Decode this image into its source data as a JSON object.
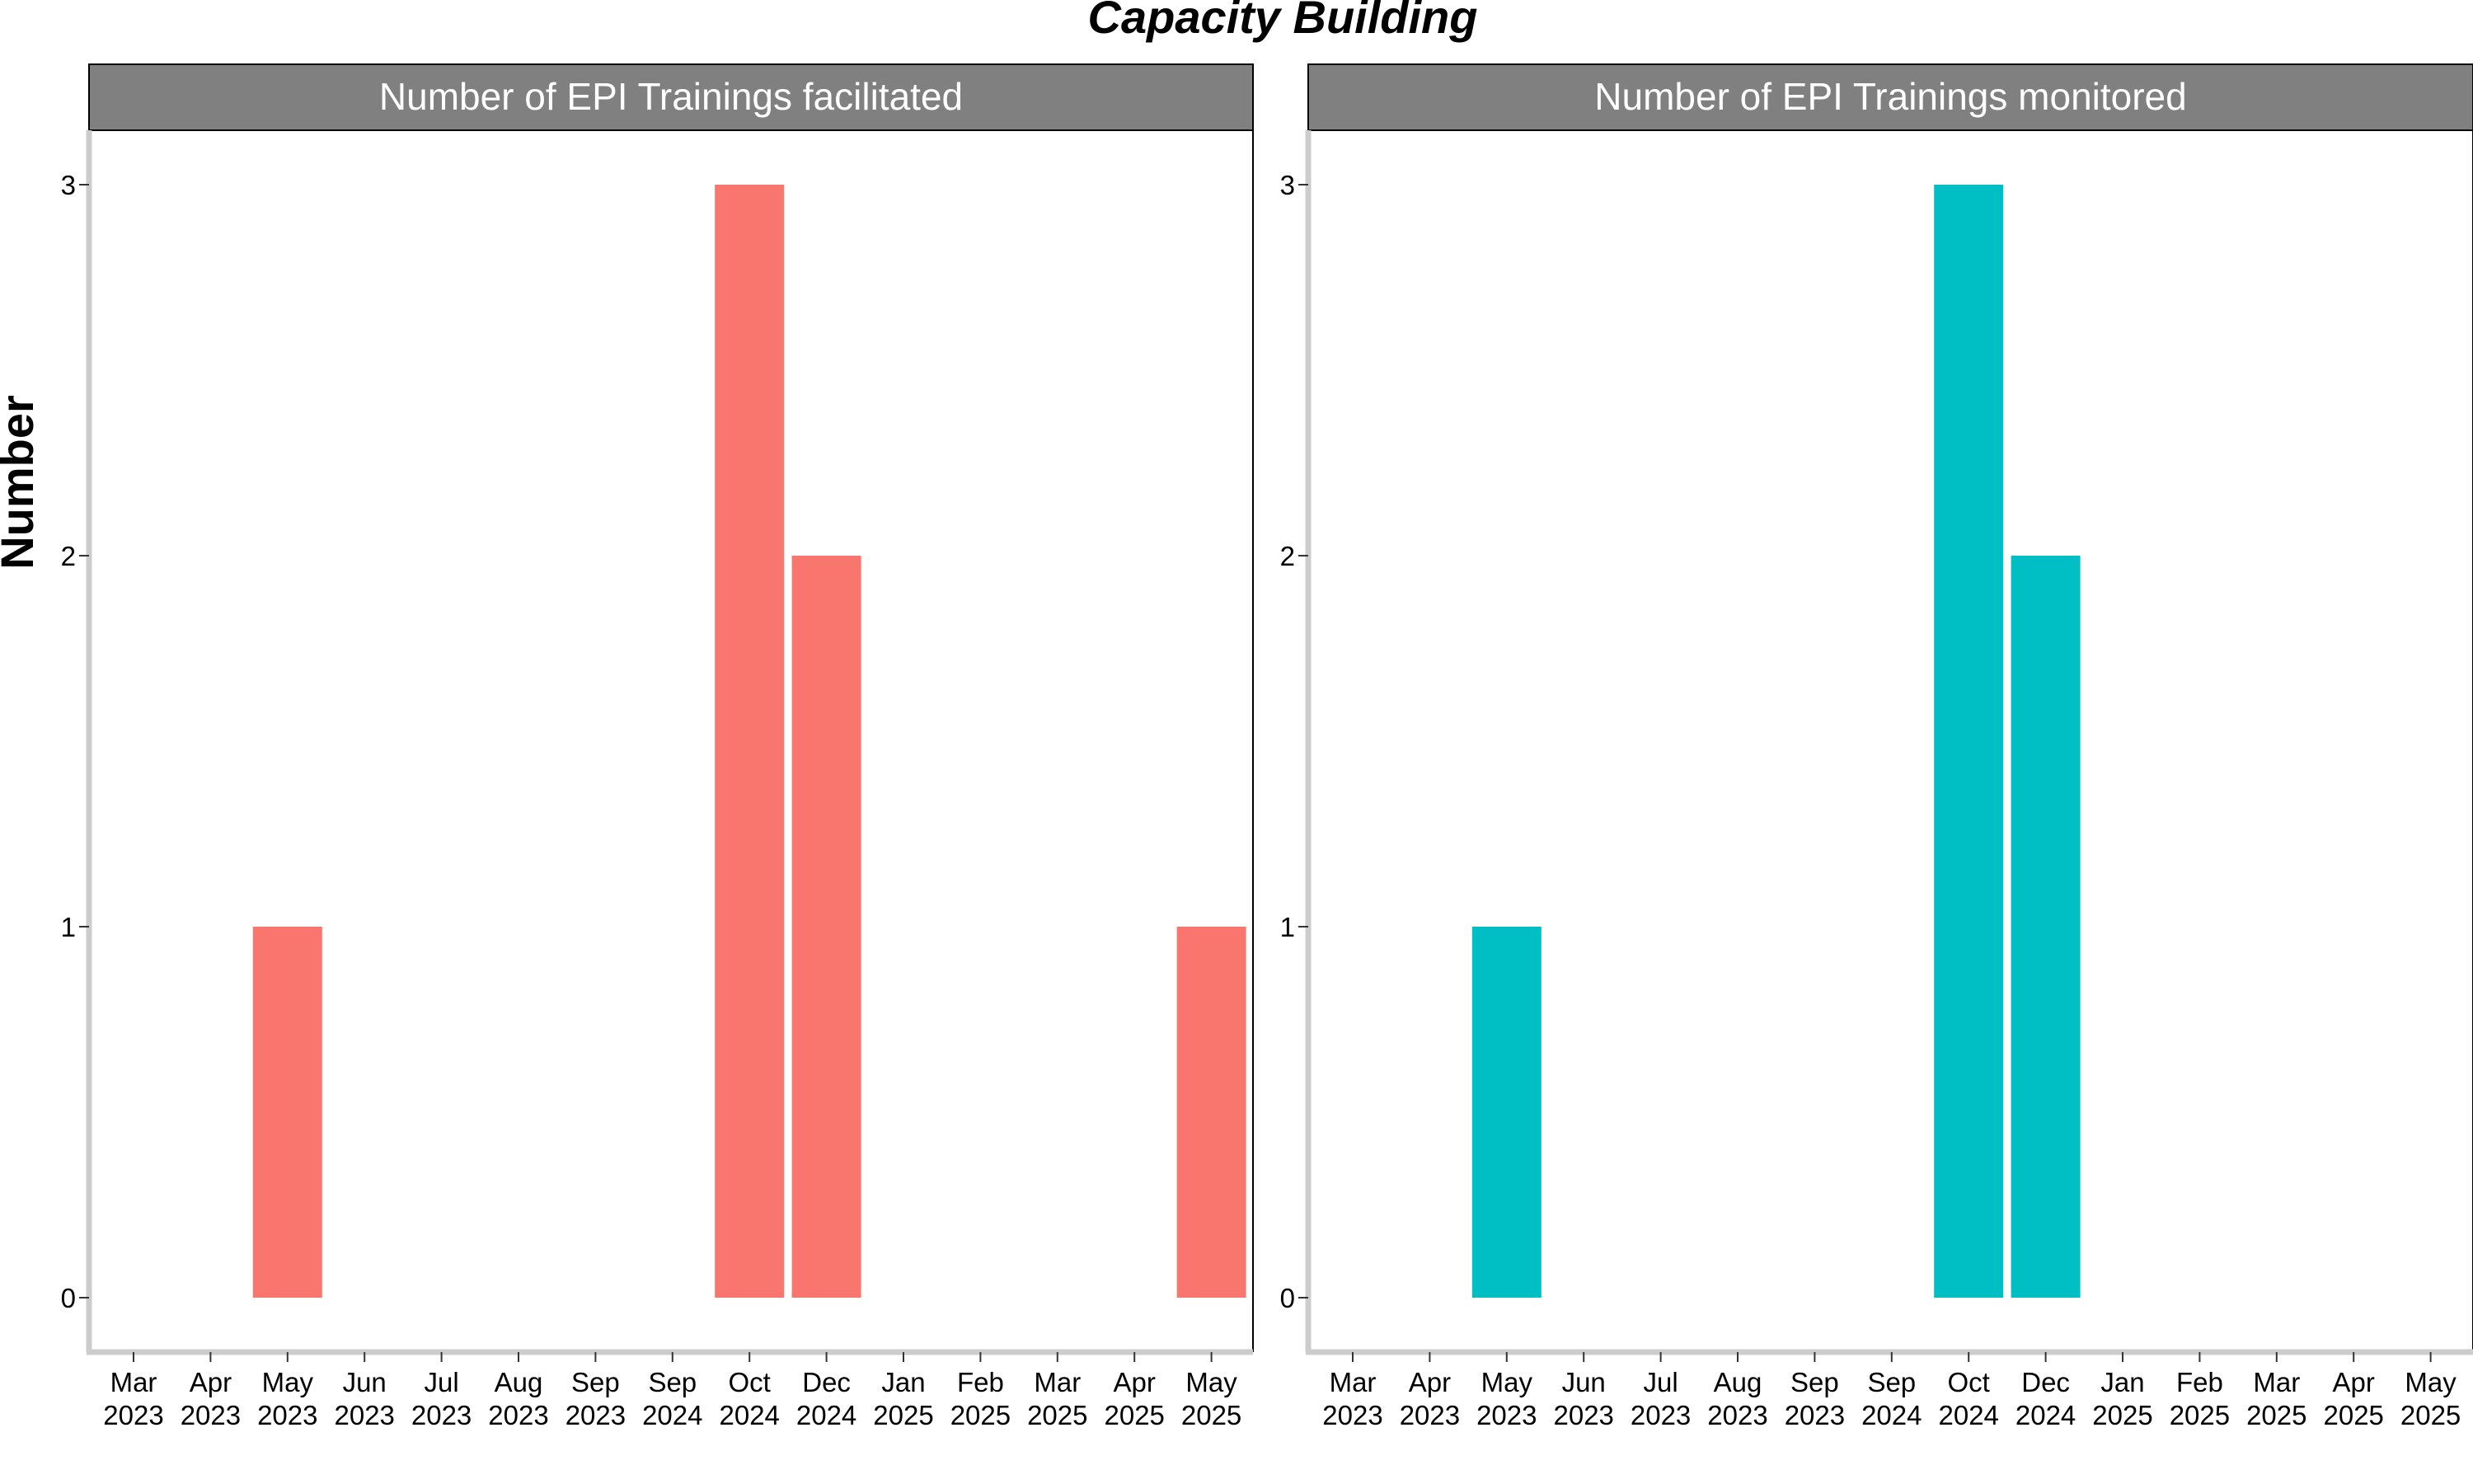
{
  "chart_data": {
    "type": "bar",
    "title": "Capacity Building",
    "ylabel": "Number",
    "xlabel": "",
    "ylim": [
      0,
      3
    ],
    "yticks": [
      "0",
      "1",
      "2",
      "3"
    ],
    "grid": false,
    "categories": [
      {
        "month": "Mar",
        "year": "2023"
      },
      {
        "month": "Apr",
        "year": "2023"
      },
      {
        "month": "May",
        "year": "2023"
      },
      {
        "month": "Jun",
        "year": "2023"
      },
      {
        "month": "Jul",
        "year": "2023"
      },
      {
        "month": "Aug",
        "year": "2023"
      },
      {
        "month": "Sep",
        "year": "2023"
      },
      {
        "month": "Sep",
        "year": "2024"
      },
      {
        "month": "Oct",
        "year": "2024"
      },
      {
        "month": "Dec",
        "year": "2024"
      },
      {
        "month": "Jan",
        "year": "2025"
      },
      {
        "month": "Feb",
        "year": "2025"
      },
      {
        "month": "Mar",
        "year": "2025"
      },
      {
        "month": "Apr",
        "year": "2025"
      },
      {
        "month": "May",
        "year": "2025"
      }
    ],
    "panels": [
      {
        "title": "Number of EPI Trainings facilitated",
        "color": "#F8766D",
        "bars": [
          {
            "category": "May 2023",
            "value": 1
          },
          {
            "category": "Oct 2024",
            "value": 3
          },
          {
            "category": "Dec 2024",
            "value": 2
          },
          {
            "category": "May 2025",
            "value": 1
          }
        ]
      },
      {
        "title": "Number of EPI Trainings monitored",
        "color": "#00BFC4",
        "bars": [
          {
            "category": "May 2023",
            "value": 1
          },
          {
            "category": "Oct 2024",
            "value": 3
          },
          {
            "category": "Dec 2024",
            "value": 2
          }
        ]
      }
    ]
  }
}
